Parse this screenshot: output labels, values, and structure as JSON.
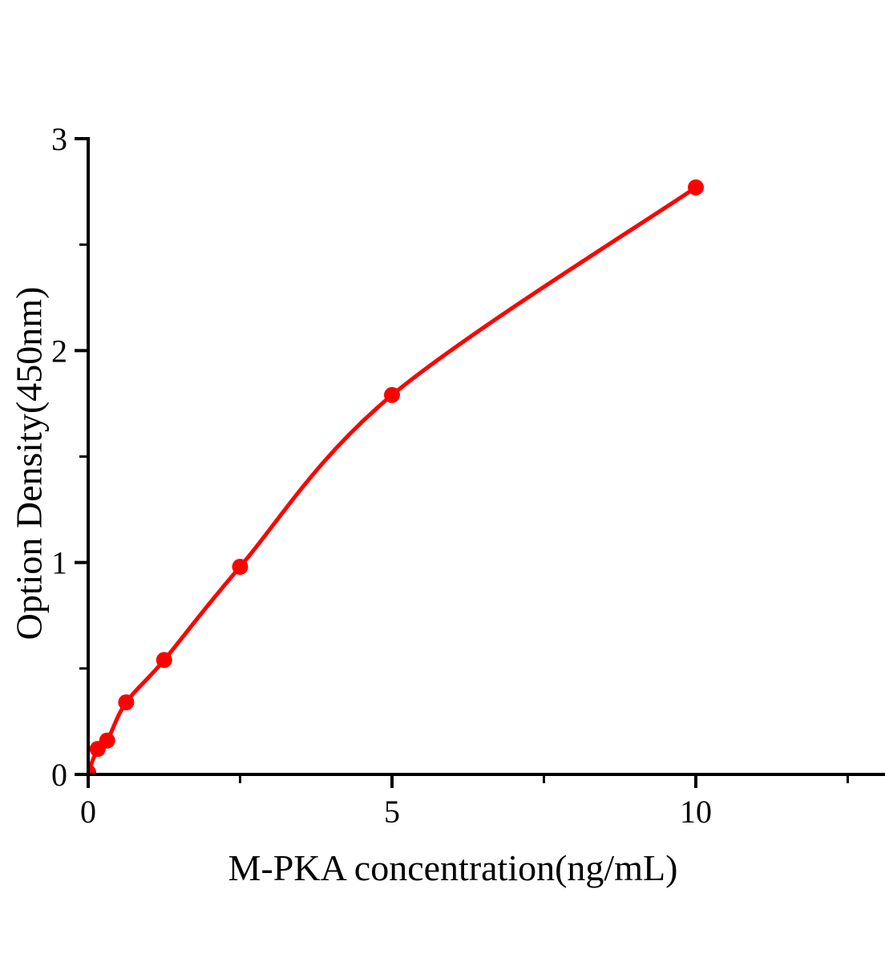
{
  "chart_data": {
    "type": "scatter",
    "title": "",
    "xlabel": "M-PKA concentration(ng/mL)",
    "ylabel": "Option Density(450nm)",
    "x": [
      0,
      0.156,
      0.3125,
      0.625,
      1.25,
      2.5,
      5,
      10
    ],
    "y": [
      0.01,
      0.12,
      0.16,
      0.34,
      0.54,
      0.98,
      1.79,
      2.77
    ],
    "fit_line": true,
    "xlim": [
      0,
      13.1
    ],
    "ylim": [
      0,
      3
    ],
    "x_major_ticks": [
      0,
      5,
      10
    ],
    "x_tick_labels": [
      "0",
      "5",
      "10"
    ],
    "x_minor_ticks": [
      2.5,
      7.5,
      12.5
    ],
    "y_major_ticks": [
      0,
      1,
      2,
      3
    ],
    "y_tick_labels": [
      "0",
      "1",
      "2",
      "3"
    ],
    "y_minor_ticks": [
      0.5,
      1.5,
      2.5
    ],
    "grid": false,
    "legend": null,
    "marker_color": "#ff0000",
    "line_color": "#ff0000",
    "axis_color": "#000000",
    "background_color": "#ffffff"
  }
}
